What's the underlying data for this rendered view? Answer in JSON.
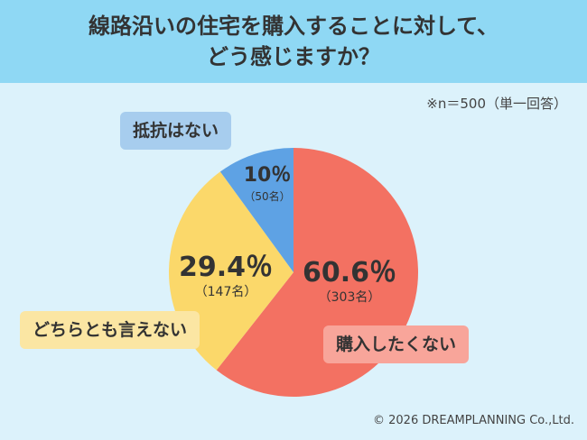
{
  "header": {
    "title_line1": "線路沿いの住宅を購入することに対して、",
    "title_line2": "どう感じますか？"
  },
  "note": "※n＝500（単一回答）",
  "chart_data": {
    "type": "pie",
    "title": "線路沿いの住宅を購入することに対して、どう感じますか？",
    "n": 500,
    "slices": [
      {
        "label": "購入したくない",
        "percent": 60.6,
        "percent_label": "60.6％",
        "count": 303,
        "count_label": "（303名）",
        "color": "#f37162"
      },
      {
        "label": "どちらとも言えない",
        "percent": 29.4,
        "percent_label": "29.4％",
        "count": 147,
        "count_label": "（147名）",
        "color": "#fbd86a"
      },
      {
        "label": "抵抗はない",
        "percent": 10,
        "percent_label": "10％",
        "count": 50,
        "count_label": "（50名）",
        "color": "#5ea2e4"
      }
    ]
  },
  "copyright": "© 2026 DREAMPLANNING Co.,Ltd."
}
